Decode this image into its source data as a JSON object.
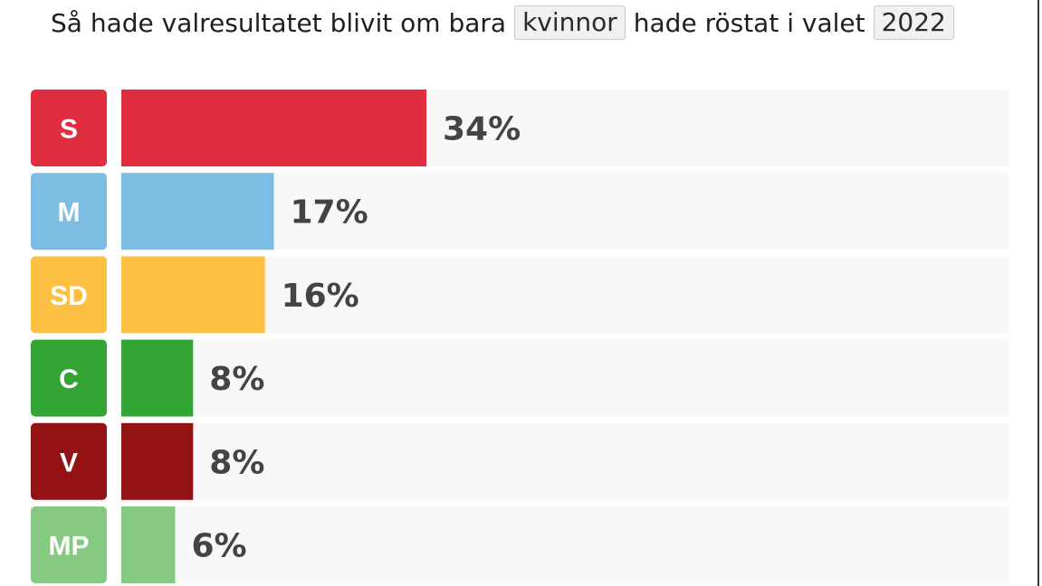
{
  "headline": {
    "prefix": "Så hade valresultatet blivit om bara",
    "group_select": "kvinnor",
    "middle": "hade röstat i valet",
    "year_select": "2022"
  },
  "chart_data": {
    "type": "bar",
    "orientation": "horizontal",
    "unit": "%",
    "categories": [
      "S",
      "M",
      "SD",
      "C",
      "V",
      "MP"
    ],
    "values": [
      34,
      17,
      16,
      8,
      8,
      6
    ],
    "value_labels": [
      "34%",
      "17%",
      "16%",
      "8%",
      "8%",
      "6%"
    ],
    "colors": [
      "#e02d3f",
      "#7dbde3",
      "#fdc042",
      "#32a535",
      "#931216",
      "#85c983"
    ],
    "track_color": "#f8f8f8",
    "xlim": [
      0,
      100
    ],
    "grid": false
  }
}
